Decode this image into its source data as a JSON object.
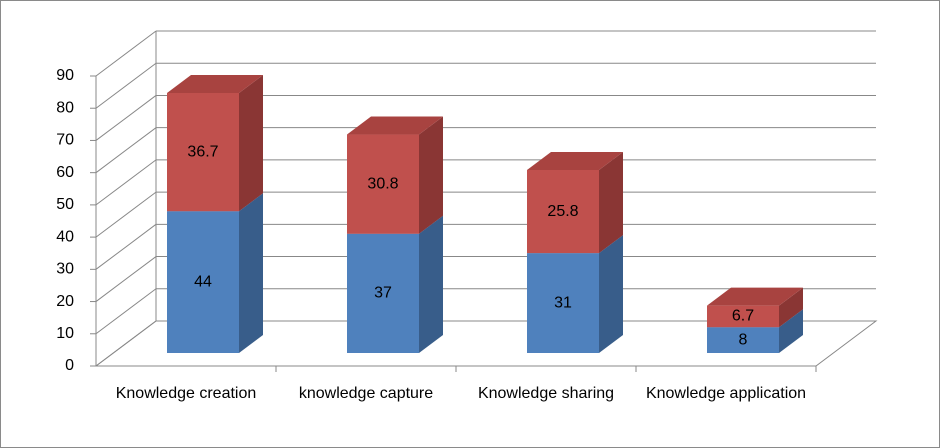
{
  "chart_data": {
    "type": "bar3d_stacked",
    "categories": [
      "Knowledge creation",
      "knowledge capture",
      "Knowledge sharing",
      "Knowledge application"
    ],
    "series": [
      {
        "color": "#4f81bd",
        "side": "#385d8a",
        "top": "#6f97c8",
        "values": [
          44,
          37,
          31,
          8
        ]
      },
      {
        "color": "#c0504d",
        "side": "#8a3634",
        "top": "#a84340",
        "values": [
          36.7,
          30.8,
          25.8,
          6.7
        ]
      }
    ],
    "ylim": [
      0,
      90
    ],
    "yticks": [
      0,
      10,
      20,
      30,
      40,
      50,
      60,
      70,
      80,
      90
    ],
    "grid": true
  }
}
